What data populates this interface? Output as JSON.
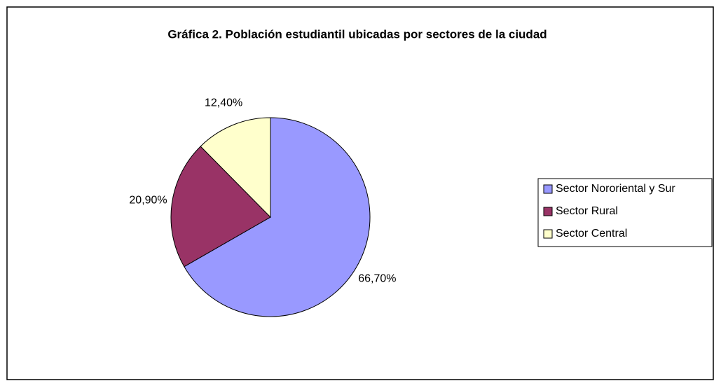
{
  "chart_data": {
    "type": "pie",
    "title": "Gráfica 2. Población estudiantil ubicadas por sectores de la ciudad",
    "categories": [
      "Sector Nororiental y Sur",
      "Sector Rural",
      "Sector Central"
    ],
    "values": [
      66.7,
      20.9,
      12.4
    ],
    "value_labels": [
      "66,70%",
      "20,90%",
      "12,40%"
    ],
    "colors": [
      "#9999ff",
      "#993366",
      "#ffffcc"
    ],
    "legend": "right"
  }
}
